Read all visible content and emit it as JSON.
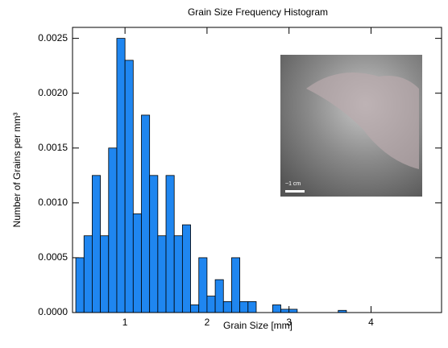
{
  "chart_data": {
    "type": "histogram",
    "title": "Grain Size Frequency Histogram",
    "xlabel": "Grain Size [mm]",
    "ylabel": "Number of Grains per mm³",
    "inset_label": "~1 cm",
    "color": "#1f86f0",
    "bins": [
      0.4,
      0.5,
      0.6,
      0.7,
      0.8,
      0.9,
      1.0,
      1.1,
      1.2,
      1.3,
      1.4,
      1.5,
      1.6,
      1.7,
      1.8,
      1.9,
      2.0,
      2.1,
      2.2,
      2.3,
      2.4,
      2.5,
      2.6,
      2.7,
      2.8,
      2.9,
      3.0,
      3.1,
      3.2,
      3.3,
      3.4,
      3.5,
      3.6,
      3.7,
      3.8,
      3.9,
      4.0,
      4.1,
      4.2,
      4.3,
      4.4,
      4.5,
      4.6,
      4.7,
      4.8,
      4.9
    ],
    "values": [
      0.0005,
      0.0007,
      0.00125,
      0.0007,
      0.0015,
      0.0025,
      0.0023,
      0.0009,
      0.0018,
      0.00125,
      0.0007,
      0.00125,
      0.0007,
      0.0008,
      7e-05,
      0.0005,
      0.00015,
      0.0003,
      0.0001,
      0.0005,
      0.0001,
      0.0001,
      0,
      0,
      7e-05,
      3e-05,
      3e-05,
      0,
      0,
      0,
      0,
      0,
      2e-05,
      0,
      0,
      0,
      0,
      0,
      0,
      0,
      0,
      0,
      0,
      0,
      0
    ],
    "xlim": [
      0.36,
      4.86
    ],
    "ylim": [
      0,
      0.0026
    ],
    "xticks": [
      1,
      2,
      3,
      4
    ],
    "yticks": [
      {
        "value": 0,
        "label": "0.0000"
      },
      {
        "value": 0.0005,
        "label": "0.0005"
      },
      {
        "value": 0.001,
        "label": "0.0010"
      },
      {
        "value": 0.0015,
        "label": "0.0015"
      },
      {
        "value": 0.002,
        "label": "0.0020"
      },
      {
        "value": 0.0025,
        "label": "0.0025"
      }
    ]
  }
}
